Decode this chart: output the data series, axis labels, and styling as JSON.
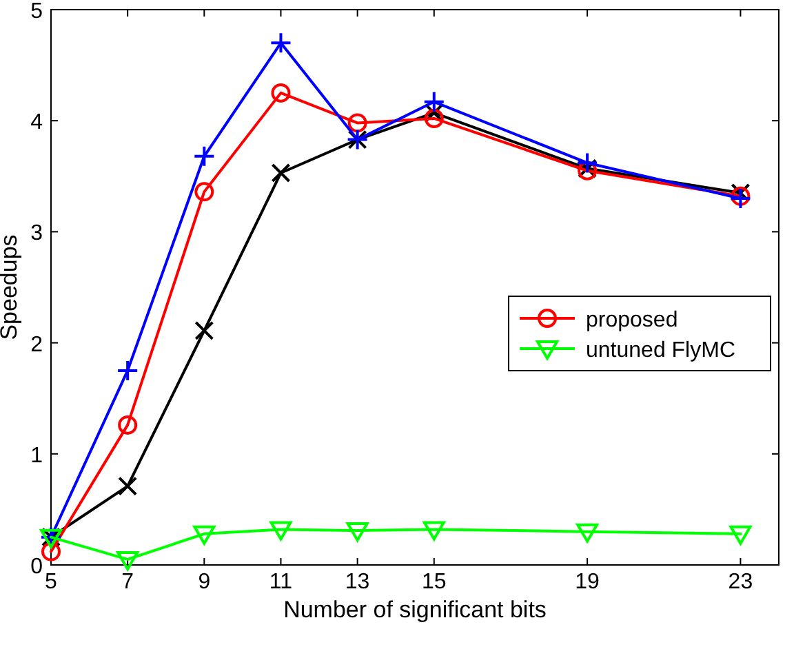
{
  "chart_data": {
    "type": "line",
    "xlabel": "Number of significant bits",
    "ylabel": "Speedups",
    "x": [
      5,
      7,
      9,
      11,
      13,
      15,
      19,
      23
    ],
    "xlim": [
      5,
      24
    ],
    "xticks": [
      5,
      7,
      9,
      11,
      13,
      15,
      19,
      23
    ],
    "ylim": [
      0,
      5
    ],
    "yticks": [
      0,
      1,
      2,
      3,
      4,
      5
    ],
    "grid": false,
    "legend": "right",
    "line_style": "solid",
    "series": [
      {
        "color": "#000000",
        "marker": "cross",
        "values": [
          0.25,
          0.71,
          2.11,
          3.53,
          3.83,
          4.07,
          3.57,
          3.35
        ]
      },
      {
        "name": "proposed",
        "color": "#ff0000",
        "marker": "circle",
        "values": [
          0.12,
          1.26,
          3.36,
          4.25,
          3.98,
          4.02,
          3.55,
          3.32
        ]
      },
      {
        "color": "#0000ff",
        "marker": "plus",
        "values": [
          0.25,
          1.75,
          3.68,
          4.7,
          3.83,
          4.17,
          3.62,
          3.3
        ]
      },
      {
        "name": "untuned FlyMC",
        "color": "#00ff00",
        "marker": "triangle",
        "values": [
          0.25,
          0.05,
          0.28,
          0.32,
          0.31,
          0.32,
          0.3,
          0.28
        ]
      }
    ]
  }
}
